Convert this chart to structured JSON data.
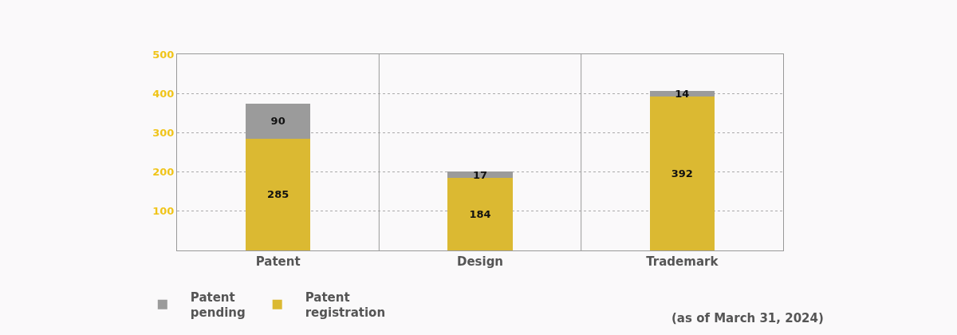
{
  "chart_data": {
    "type": "bar",
    "stacked": true,
    "categories": [
      "Patent",
      "Design",
      "Trademark"
    ],
    "series": [
      {
        "name": "Patent registration",
        "color": "#dbb932",
        "values": [
          285,
          184,
          392
        ]
      },
      {
        "name": "Patent pending",
        "color": "#9b9b9b",
        "values": [
          90,
          17,
          14
        ]
      }
    ],
    "ylim": [
      0,
      500
    ],
    "yticks": [
      {
        "value": 0,
        "label": null
      },
      100,
      200,
      300,
      400,
      500
    ],
    "grid": true,
    "legend": "bottom left",
    "data_labels": true,
    "annotations": [
      "(as of March 31, 2024)"
    ]
  }
}
